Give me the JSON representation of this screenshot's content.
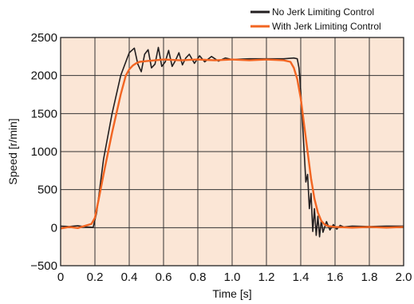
{
  "chart_data": {
    "type": "line",
    "xlabel": "Time [s]",
    "ylabel": "Speed [r/min]",
    "xlim": [
      0,
      2.0
    ],
    "ylim": [
      -500,
      2500
    ],
    "x_ticks": [
      0,
      0.2,
      0.4,
      0.6,
      0.8,
      1.0,
      1.2,
      1.4,
      1.6,
      1.8,
      2.0
    ],
    "x_tick_labels": [
      "0",
      "0.2",
      "0.4",
      "0.6",
      "0.8",
      "1.0",
      "1.2",
      "1.4",
      "1.6",
      "1.8",
      "2.0"
    ],
    "y_ticks": [
      -500,
      0,
      500,
      1000,
      1500,
      2000,
      2500
    ],
    "y_tick_labels": [
      "−500",
      "0",
      "500",
      "1000",
      "1500",
      "2000",
      "2500"
    ],
    "grid": true,
    "plot_background": "#fbe6d6",
    "legend_position": "above-top-right",
    "series": [
      {
        "name": "No Jerk Limiting Control",
        "color": "#231f20",
        "x": [
          0,
          0.05,
          0.1,
          0.15,
          0.19,
          0.21,
          0.25,
          0.3,
          0.35,
          0.4,
          0.43,
          0.45,
          0.47,
          0.49,
          0.51,
          0.53,
          0.55,
          0.57,
          0.59,
          0.61,
          0.63,
          0.65,
          0.67,
          0.69,
          0.71,
          0.73,
          0.75,
          0.78,
          0.81,
          0.84,
          0.88,
          0.92,
          0.96,
          1.0,
          1.1,
          1.2,
          1.3,
          1.36,
          1.38,
          1.39,
          1.4,
          1.41,
          1.42,
          1.43,
          1.44,
          1.45,
          1.46,
          1.47,
          1.48,
          1.49,
          1.5,
          1.51,
          1.52,
          1.53,
          1.55,
          1.57,
          1.59,
          1.61,
          1.63,
          1.65,
          1.7,
          1.8,
          1.9,
          2.0
        ],
        "y": [
          20,
          15,
          25,
          10,
          5,
          200,
          900,
          1500,
          2000,
          2300,
          2360,
          2150,
          2050,
          2280,
          2340,
          2100,
          2150,
          2370,
          2120,
          2180,
          2330,
          2120,
          2200,
          2300,
          2140,
          2230,
          2280,
          2160,
          2260,
          2180,
          2250,
          2190,
          2230,
          2210,
          2220,
          2220,
          2220,
          2230,
          2220,
          2100,
          1800,
          1400,
          1000,
          600,
          700,
          250,
          450,
          -50,
          250,
          -100,
          150,
          -120,
          100,
          -60,
          80,
          -30,
          40,
          -20,
          30,
          10,
          20,
          15,
          20,
          20
        ]
      },
      {
        "name": "With Jerk Limiting Control",
        "color": "#f26522",
        "x": [
          0,
          0.05,
          0.1,
          0.15,
          0.18,
          0.2,
          0.22,
          0.25,
          0.3,
          0.35,
          0.38,
          0.4,
          0.42,
          0.44,
          0.46,
          0.5,
          0.55,
          0.6,
          0.7,
          0.8,
          0.9,
          1.0,
          1.1,
          1.2,
          1.3,
          1.34,
          1.36,
          1.38,
          1.4,
          1.42,
          1.44,
          1.46,
          1.48,
          1.5,
          1.52,
          1.54,
          1.56,
          1.6,
          1.7,
          1.8,
          1.9,
          2.0
        ],
        "y": [
          -10,
          10,
          -5,
          30,
          50,
          130,
          350,
          700,
          1250,
          1750,
          2000,
          2080,
          2130,
          2160,
          2180,
          2190,
          2200,
          2210,
          2200,
          2210,
          2200,
          2210,
          2200,
          2210,
          2200,
          2180,
          2100,
          1950,
          1700,
          1350,
          1000,
          650,
          380,
          200,
          90,
          40,
          20,
          10,
          0,
          10,
          0,
          10
        ]
      }
    ]
  }
}
